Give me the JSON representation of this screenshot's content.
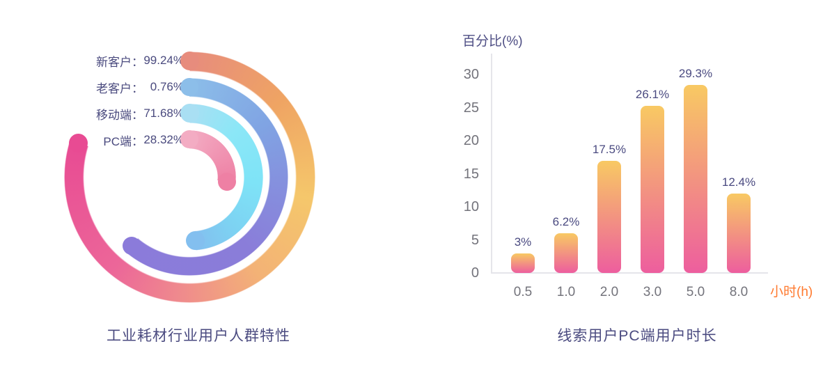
{
  "page": {
    "background": "#FFFFFF"
  },
  "left_chart": {
    "title": "工业耗材行业用户人群特性",
    "legend": [
      {
        "label": "新客户：",
        "value": "99.24%"
      },
      {
        "label": "老客户：",
        "value": "0.76%"
      },
      {
        "label": "移动端：",
        "value": "71.68%"
      },
      {
        "label": "PC端：",
        "value": "28.32%"
      }
    ]
  },
  "right_chart": {
    "title": "线索用户PC端用户时长",
    "y_axis_title": "百分比(%)",
    "x_axis_unit": "小时(h)"
  },
  "colors": {
    "text_primary": "#4A4A80",
    "tick_gray": "#73737B",
    "axis_line": "#E5E5EA",
    "x_unit_orange": "#FF7A2F",
    "bar_gradient_top": "#F8C963",
    "bar_gradient_bottom": "#ED5E9E"
  },
  "chart_data": [
    {
      "type": "bar",
      "variant": "radial-concentric-rings",
      "title": "工业耗材行业用户人群特性",
      "unit": "%",
      "categories": [
        "新客户",
        "老客户",
        "移动端",
        "PC端"
      ],
      "values": [
        99.24,
        0.76,
        71.68,
        28.32
      ],
      "legend_position": "top-left",
      "rings": [
        {
          "id": "ring-outer",
          "r": 167,
          "w": 27,
          "sweep": 287,
          "stops": [
            [
              0,
              "#E78C7D"
            ],
            [
              50,
              "#EFA463"
            ],
            [
              100,
              "#F5C76B"
            ],
            [
              145,
              "#F3B276"
            ],
            [
              185,
              "#EF8A8D"
            ],
            [
              220,
              "#EC6699"
            ],
            [
              287,
              "#E84B93"
            ]
          ]
        },
        {
          "id": "ring-2",
          "r": 129,
          "w": 26,
          "sweep": 220,
          "stops": [
            [
              0,
              "#8CBEE9"
            ],
            [
              55,
              "#80A4E3"
            ],
            [
              95,
              "#8590DE"
            ],
            [
              140,
              "#8A7DD9"
            ],
            [
              220,
              "#8B7BDA"
            ]
          ]
        },
        {
          "id": "ring-3",
          "r": 92,
          "w": 27,
          "sweep": 175,
          "stops": [
            [
              0,
              "#A9DFF3"
            ],
            [
              45,
              "#8BE7F7"
            ],
            [
              95,
              "#7EE3F7"
            ],
            [
              140,
              "#7DD2F2"
            ],
            [
              175,
              "#83BFEF"
            ]
          ]
        },
        {
          "id": "ring-inner",
          "r": 54,
          "w": 26,
          "sweep": 97,
          "stops": [
            [
              0,
              "#F3ACC3"
            ],
            [
              97,
              "#EE80A4"
            ]
          ]
        }
      ]
    },
    {
      "type": "bar",
      "title": "线索用户PC端用户时长",
      "categories": [
        "0.5",
        "1.0",
        "2.0",
        "3.0",
        "5.0",
        "8.0"
      ],
      "values": [
        3,
        6.2,
        17.5,
        26.1,
        29.3,
        12.4
      ],
      "data_labels": [
        "3%",
        "6.2%",
        "17.5%",
        "26.1%",
        "29.3%",
        "12.4%"
      ],
      "xlabel": "小时(h)",
      "ylabel": "百分比(%)",
      "yticks": [
        0,
        5,
        10,
        15,
        20,
        25,
        30
      ],
      "ylim": [
        0,
        30
      ],
      "grid": false,
      "legend_position": "none"
    }
  ]
}
